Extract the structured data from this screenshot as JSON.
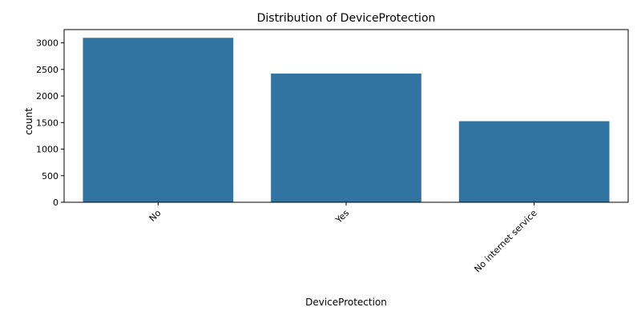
{
  "chart_data": {
    "type": "bar",
    "title": "Distribution of DeviceProtection",
    "xlabel": "DeviceProtection",
    "ylabel": "count",
    "categories": [
      "No",
      "Yes",
      "No internet service"
    ],
    "values": [
      3095,
      2422,
      1526
    ],
    "ylim": [
      0,
      3250
    ],
    "yticks": [
      0,
      500,
      1000,
      1500,
      2000,
      2500,
      3000
    ],
    "bar_color": "#3274a1",
    "grid": false,
    "legend": "none",
    "x_tick_rotation_deg": 45
  }
}
